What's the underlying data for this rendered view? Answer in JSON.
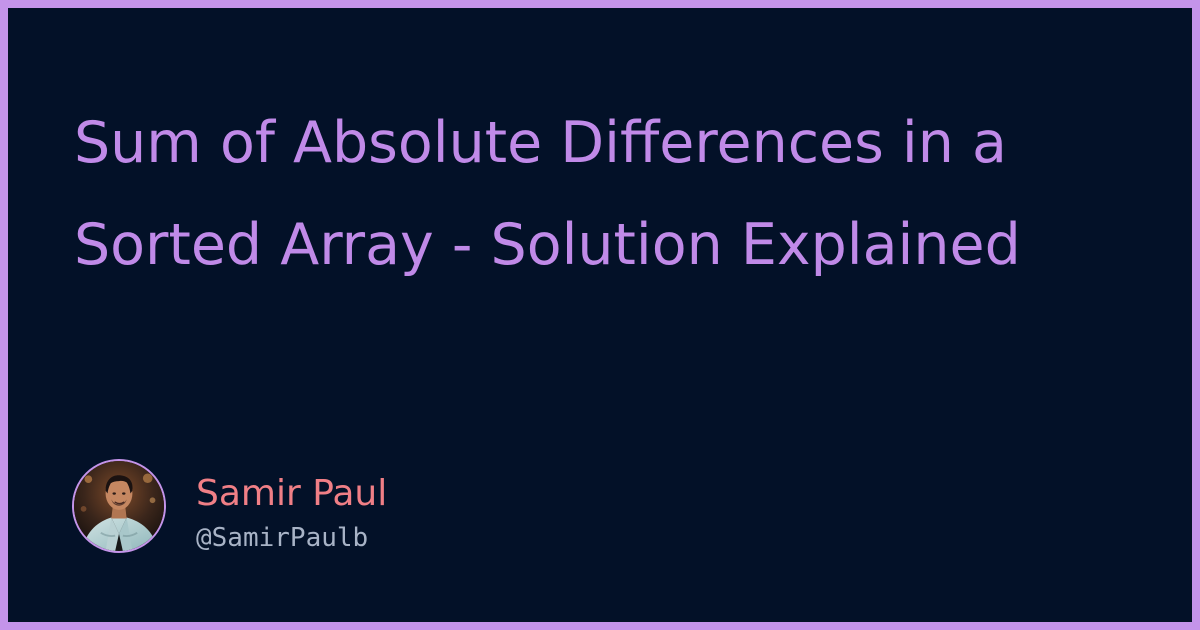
{
  "card": {
    "title": "Sum of Absolute Differences in a Sorted Array - Solution Explained",
    "author": {
      "name": "Samir Paul",
      "handle": "@SamirPaulb",
      "avatar_icon": "author-photo"
    }
  },
  "colors": {
    "frame": "#c494ea",
    "background": "#031128",
    "title": "#c08ae8",
    "author_name": "#f07f86",
    "author_handle": "#a8b3c6"
  }
}
